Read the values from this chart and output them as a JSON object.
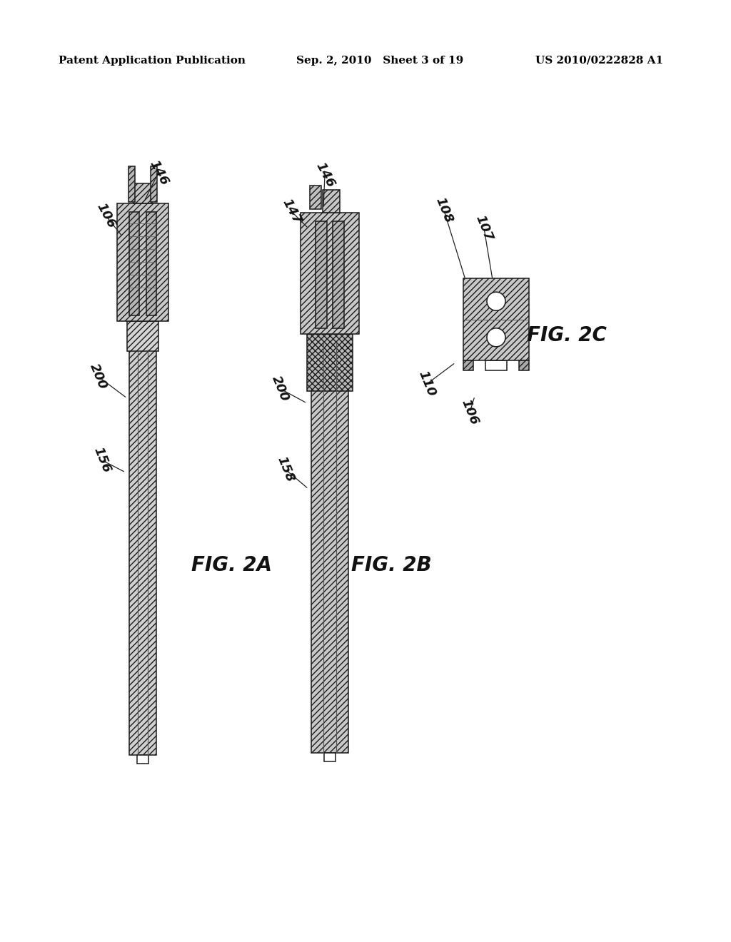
{
  "bg_color": "#ffffff",
  "header_left": "Patent Application Publication",
  "header_center": "Sep. 2, 2010   Sheet 3 of 19",
  "header_right": "US 2010/0222828 A1",
  "fig2a_label": "FIG. 2A",
  "fig2b_label": "FIG. 2B",
  "fig2c_label": "FIG. 2C",
  "fig_label_size": 20,
  "callout_size": 13,
  "header_size": 11
}
